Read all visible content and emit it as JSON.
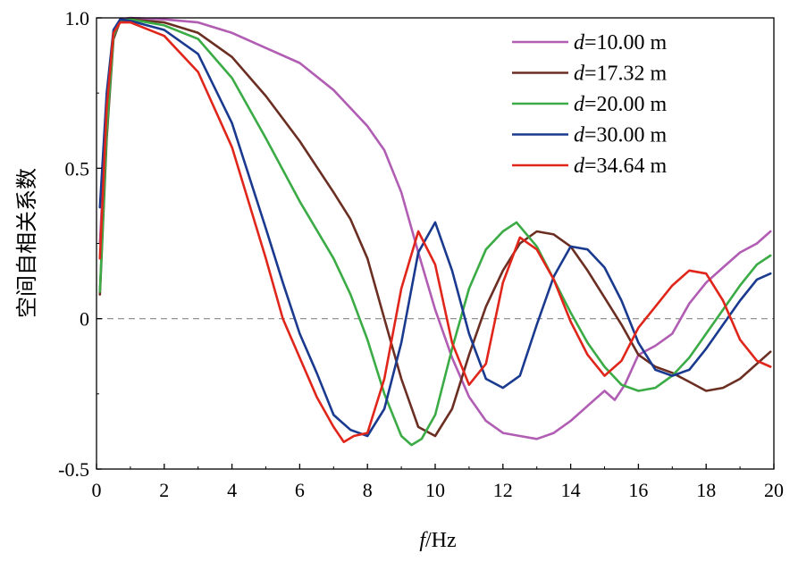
{
  "chart_data": {
    "type": "line",
    "xlabel_var": "f",
    "xlabel_unit": "/Hz",
    "ylabel": "空间自相关系数",
    "xlim": [
      0,
      20
    ],
    "ylim": [
      -0.5,
      1.0
    ],
    "x_ticks": [
      "0",
      "2",
      "4",
      "6",
      "8",
      "10",
      "12",
      "14",
      "16",
      "18",
      "20"
    ],
    "y_ticks": [
      "-0.5",
      "0",
      "0.5",
      "1.0"
    ],
    "zero_line": "dashed",
    "legend_position": "top-right",
    "series": [
      {
        "name": "=10.00 m",
        "name_var": "d",
        "color": "#b05db3",
        "points": [
          [
            0.1,
            0.25
          ],
          [
            0.3,
            0.7
          ],
          [
            0.5,
            0.95
          ],
          [
            0.7,
            0.995
          ],
          [
            1,
            1.0
          ],
          [
            2,
            0.995
          ],
          [
            3,
            0.985
          ],
          [
            4,
            0.95
          ],
          [
            5,
            0.9
          ],
          [
            6,
            0.85
          ],
          [
            7,
            0.76
          ],
          [
            8,
            0.64
          ],
          [
            8.5,
            0.56
          ],
          [
            9,
            0.42
          ],
          [
            9.5,
            0.22
          ],
          [
            10,
            0.03
          ],
          [
            10.5,
            -0.13
          ],
          [
            11,
            -0.26
          ],
          [
            11.5,
            -0.34
          ],
          [
            12,
            -0.38
          ],
          [
            12.5,
            -0.39
          ],
          [
            13,
            -0.4
          ],
          [
            13.5,
            -0.38
          ],
          [
            14,
            -0.34
          ],
          [
            14.5,
            -0.29
          ],
          [
            15,
            -0.24
          ],
          [
            15.3,
            -0.27
          ],
          [
            15.6,
            -0.22
          ],
          [
            16,
            -0.12
          ],
          [
            16.5,
            -0.09
          ],
          [
            17,
            -0.05
          ],
          [
            17.5,
            0.05
          ],
          [
            18,
            0.12
          ],
          [
            18.5,
            0.17
          ],
          [
            19,
            0.22
          ],
          [
            19.5,
            0.25
          ],
          [
            19.9,
            0.29
          ]
        ]
      },
      {
        "name": "=17.32 m",
        "name_var": "d",
        "color": "#6b2e22",
        "points": [
          [
            0.1,
            0.08
          ],
          [
            0.3,
            0.6
          ],
          [
            0.5,
            0.93
          ],
          [
            0.7,
            0.99
          ],
          [
            1,
            0.995
          ],
          [
            2,
            0.985
          ],
          [
            3,
            0.95
          ],
          [
            4,
            0.87
          ],
          [
            5,
            0.74
          ],
          [
            6,
            0.59
          ],
          [
            7,
            0.42
          ],
          [
            7.5,
            0.33
          ],
          [
            8,
            0.2
          ],
          [
            8.5,
            0.0
          ],
          [
            9,
            -0.2
          ],
          [
            9.5,
            -0.36
          ],
          [
            10,
            -0.39
          ],
          [
            10.5,
            -0.3
          ],
          [
            11,
            -0.12
          ],
          [
            11.5,
            0.04
          ],
          [
            12,
            0.16
          ],
          [
            12.5,
            0.25
          ],
          [
            13,
            0.29
          ],
          [
            13.5,
            0.28
          ],
          [
            14,
            0.24
          ],
          [
            14.5,
            0.16
          ],
          [
            15,
            0.07
          ],
          [
            15.5,
            -0.02
          ],
          [
            16,
            -0.12
          ],
          [
            16.5,
            -0.16
          ],
          [
            17,
            -0.18
          ],
          [
            17.5,
            -0.21
          ],
          [
            18,
            -0.24
          ],
          [
            18.5,
            -0.23
          ],
          [
            19,
            -0.2
          ],
          [
            19.5,
            -0.15
          ],
          [
            19.9,
            -0.11
          ]
        ]
      },
      {
        "name": "=20.00 m",
        "name_var": "d",
        "color": "#3aab45",
        "points": [
          [
            0.1,
            0.09
          ],
          [
            0.3,
            0.62
          ],
          [
            0.5,
            0.94
          ],
          [
            0.7,
            0.99
          ],
          [
            1,
            0.995
          ],
          [
            2,
            0.975
          ],
          [
            3,
            0.93
          ],
          [
            4,
            0.8
          ],
          [
            5,
            0.6
          ],
          [
            6,
            0.39
          ],
          [
            7,
            0.2
          ],
          [
            7.5,
            0.08
          ],
          [
            8,
            -0.07
          ],
          [
            8.5,
            -0.25
          ],
          [
            9,
            -0.39
          ],
          [
            9.3,
            -0.42
          ],
          [
            9.6,
            -0.4
          ],
          [
            10,
            -0.32
          ],
          [
            10.5,
            -0.1
          ],
          [
            11,
            0.1
          ],
          [
            11.5,
            0.23
          ],
          [
            12,
            0.29
          ],
          [
            12.4,
            0.32
          ],
          [
            13,
            0.24
          ],
          [
            13.5,
            0.13
          ],
          [
            14,
            0.02
          ],
          [
            14.5,
            -0.08
          ],
          [
            15,
            -0.16
          ],
          [
            15.5,
            -0.22
          ],
          [
            16,
            -0.24
          ],
          [
            16.5,
            -0.23
          ],
          [
            17,
            -0.19
          ],
          [
            17.5,
            -0.13
          ],
          [
            18,
            -0.05
          ],
          [
            18.5,
            0.03
          ],
          [
            19,
            0.11
          ],
          [
            19.5,
            0.18
          ],
          [
            19.9,
            0.21
          ]
        ]
      },
      {
        "name": "=30.00 m",
        "name_var": "d",
        "color": "#1a3a8f",
        "points": [
          [
            0.1,
            0.37
          ],
          [
            0.3,
            0.75
          ],
          [
            0.5,
            0.96
          ],
          [
            0.7,
            0.995
          ],
          [
            1,
            0.99
          ],
          [
            2,
            0.96
          ],
          [
            3,
            0.88
          ],
          [
            4,
            0.65
          ],
          [
            5,
            0.3
          ],
          [
            5.5,
            0.12
          ],
          [
            6,
            -0.05
          ],
          [
            6.5,
            -0.18
          ],
          [
            7,
            -0.32
          ],
          [
            7.5,
            -0.37
          ],
          [
            8,
            -0.39
          ],
          [
            8.5,
            -0.3
          ],
          [
            9,
            -0.08
          ],
          [
            9.5,
            0.22
          ],
          [
            10,
            0.32
          ],
          [
            10.5,
            0.16
          ],
          [
            11,
            -0.05
          ],
          [
            11.5,
            -0.2
          ],
          [
            12,
            -0.23
          ],
          [
            12.5,
            -0.19
          ],
          [
            13,
            -0.02
          ],
          [
            13.5,
            0.14
          ],
          [
            14,
            0.24
          ],
          [
            14.5,
            0.23
          ],
          [
            15,
            0.17
          ],
          [
            15.5,
            0.06
          ],
          [
            16,
            -0.08
          ],
          [
            16.5,
            -0.17
          ],
          [
            17,
            -0.19
          ],
          [
            17.5,
            -0.17
          ],
          [
            18,
            -0.1
          ],
          [
            18.5,
            -0.02
          ],
          [
            19,
            0.06
          ],
          [
            19.5,
            0.13
          ],
          [
            19.9,
            0.15
          ]
        ]
      },
      {
        "name": "=34.64 m",
        "name_var": "d",
        "color": "#e0261b",
        "points": [
          [
            0.1,
            0.2
          ],
          [
            0.3,
            0.7
          ],
          [
            0.5,
            0.95
          ],
          [
            0.7,
            0.985
          ],
          [
            1,
            0.985
          ],
          [
            2,
            0.94
          ],
          [
            3,
            0.82
          ],
          [
            4,
            0.57
          ],
          [
            5,
            0.2
          ],
          [
            5.5,
            0.0
          ],
          [
            6,
            -0.13
          ],
          [
            6.5,
            -0.26
          ],
          [
            7,
            -0.36
          ],
          [
            7.3,
            -0.41
          ],
          [
            7.6,
            -0.39
          ],
          [
            8,
            -0.38
          ],
          [
            8.5,
            -0.2
          ],
          [
            9,
            0.1
          ],
          [
            9.5,
            0.29
          ],
          [
            10,
            0.18
          ],
          [
            10.5,
            -0.08
          ],
          [
            11,
            -0.22
          ],
          [
            11.5,
            -0.15
          ],
          [
            12,
            0.12
          ],
          [
            12.5,
            0.27
          ],
          [
            13,
            0.23
          ],
          [
            13.5,
            0.13
          ],
          [
            14,
            -0.01
          ],
          [
            14.5,
            -0.12
          ],
          [
            15,
            -0.19
          ],
          [
            15.5,
            -0.14
          ],
          [
            16,
            -0.03
          ],
          [
            16.5,
            0.04
          ],
          [
            17,
            0.11
          ],
          [
            17.5,
            0.16
          ],
          [
            18,
            0.15
          ],
          [
            18.5,
            0.06
          ],
          [
            19,
            -0.07
          ],
          [
            19.5,
            -0.14
          ],
          [
            19.9,
            -0.16
          ]
        ]
      }
    ]
  }
}
